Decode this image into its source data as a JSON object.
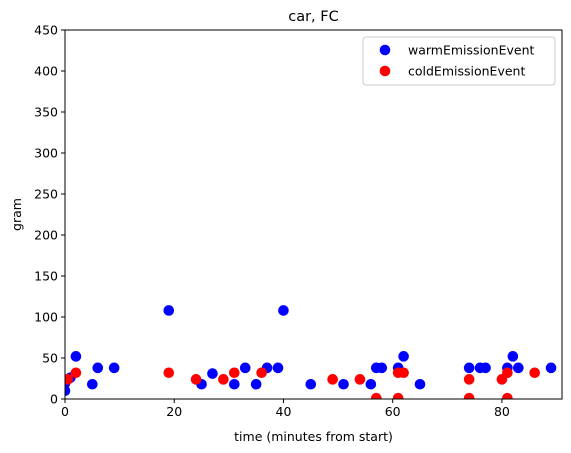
{
  "chart_data": {
    "type": "scatter",
    "title": "car, FC",
    "xlabel": "time (minutes from start)",
    "ylabel": "gram",
    "xlim": [
      0,
      91
    ],
    "ylim": [
      0,
      450
    ],
    "xticks": [
      0,
      20,
      40,
      60,
      80
    ],
    "yticks": [
      0,
      50,
      100,
      150,
      200,
      250,
      300,
      350,
      400,
      450
    ],
    "grid": false,
    "legend_position": "top-right",
    "series": [
      {
        "name": "warmEmissionEvent",
        "color": "#0000ff",
        "points": [
          [
            0,
            10
          ],
          [
            0,
            19
          ],
          [
            0.5,
            24
          ],
          [
            1,
            26
          ],
          [
            2,
            52
          ],
          [
            5,
            18
          ],
          [
            6,
            38
          ],
          [
            9,
            38
          ],
          [
            19,
            108
          ],
          [
            25,
            18
          ],
          [
            27,
            31
          ],
          [
            31,
            18
          ],
          [
            33,
            38
          ],
          [
            35,
            18
          ],
          [
            37,
            38
          ],
          [
            39,
            38
          ],
          [
            40,
            108
          ],
          [
            45,
            18
          ],
          [
            51,
            18
          ],
          [
            56,
            18
          ],
          [
            57,
            38
          ],
          [
            58,
            38
          ],
          [
            61,
            38
          ],
          [
            62,
            52
          ],
          [
            65,
            18
          ],
          [
            74,
            38
          ],
          [
            76,
            38
          ],
          [
            77,
            38
          ],
          [
            81,
            38
          ],
          [
            82,
            52
          ],
          [
            83,
            38
          ],
          [
            89,
            38
          ]
        ]
      },
      {
        "name": "coldEmissionEvent",
        "color": "#ff0000",
        "points": [
          [
            0.5,
            24
          ],
          [
            2,
            32
          ],
          [
            19,
            32
          ],
          [
            24,
            24
          ],
          [
            29,
            24
          ],
          [
            31,
            32
          ],
          [
            36,
            32
          ],
          [
            49,
            24
          ],
          [
            54,
            24
          ],
          [
            57,
            1
          ],
          [
            61,
            1
          ],
          [
            61,
            32
          ],
          [
            62,
            32
          ],
          [
            74,
            1
          ],
          [
            74,
            24
          ],
          [
            80,
            24
          ],
          [
            81,
            1
          ],
          [
            81,
            32
          ],
          [
            86,
            32
          ]
        ]
      }
    ]
  }
}
